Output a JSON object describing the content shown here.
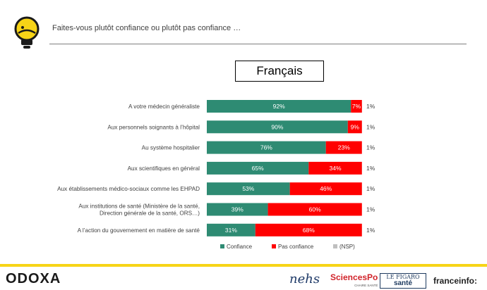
{
  "header": {
    "question": "Faites-vous plutôt confiance ou plutôt pas confiance …"
  },
  "segment_label": "Français",
  "colors": {
    "confiance": "#2e8b73",
    "pas_confiance": "#ff0000",
    "nsp": "#bfbfbf",
    "accent": "#f7d417"
  },
  "chart_data": {
    "type": "bar",
    "orientation": "horizontal",
    "stacked": true,
    "categories": [
      [
        "A votre médecin généraliste"
      ],
      [
        "Aux personnels soignants à l’hôpital"
      ],
      [
        "Au système hospitalier"
      ],
      [
        "Aux scientifiques en général"
      ],
      [
        "Aux établissements médico-sociaux comme les EHPAD"
      ],
      [
        "Aux institutions de santé (Ministère de la santé,",
        "Direction générale de la santé, ORS…)"
      ],
      [
        "A l’action du gouvernement en matière de santé"
      ]
    ],
    "series": [
      {
        "name": "Confiance",
        "values": [
          92,
          90,
          76,
          65,
          53,
          39,
          31
        ],
        "labels": [
          "92%",
          "90%",
          "76%",
          "65%",
          "53%",
          "39%",
          "31%"
        ]
      },
      {
        "name": "Pas confiance",
        "values": [
          7,
          9,
          23,
          34,
          46,
          60,
          68
        ],
        "labels": [
          "7%",
          "9%",
          "23%",
          "34%",
          "46%",
          "60%",
          "68%"
        ]
      },
      {
        "name": "(NSP)",
        "values": [
          1,
          1,
          1,
          1,
          1,
          1,
          1
        ],
        "labels": [
          "1%",
          "1%",
          "1%",
          "1%",
          "1%",
          "1%",
          "1%"
        ]
      }
    ],
    "xlim": [
      0,
      100
    ],
    "grid": false,
    "legend_position": "bottom"
  },
  "footer": {
    "brand": "ODOXA",
    "partners": {
      "nehs": "nehs",
      "sciencespo": "SciencesPo",
      "sciencespo_sub": "CHAIRE SANTÉ",
      "figaro_top": "LE FIGARO",
      "figaro_bottom": "santé",
      "franceinfo": "franceinfo:"
    }
  }
}
